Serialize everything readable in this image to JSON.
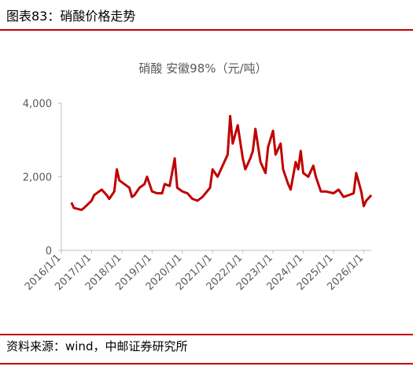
{
  "header": {
    "title": "图表83：硝酸价格走势"
  },
  "footer": {
    "source": "资料来源：wind，中邮证券研究所"
  },
  "chart_data": {
    "type": "line",
    "title": "硝酸 安徽98%（元/吨）",
    "x": [
      "2016/5/1",
      "2016/6/1",
      "2016/9/1",
      "2016/10/1",
      "2017/1/1",
      "2017/2/1",
      "2017/4/1",
      "2017/5/1",
      "2017/7/1",
      "2017/8/1",
      "2017/10/1",
      "2017/11/1",
      "2017/12/1",
      "2018/2/1",
      "2018/4/1",
      "2018/5/1",
      "2018/6/1",
      "2018/8/1",
      "2018/10/1",
      "2018/11/1",
      "2019/1/1",
      "2019/3/1",
      "2019/5/1",
      "2019/6/1",
      "2019/8/1",
      "2019/10/1",
      "2019/11/1",
      "2020/1/1",
      "2020/3/1",
      "2020/5/1",
      "2020/7/1",
      "2020/9/1",
      "2020/12/1",
      "2021/1/1",
      "2021/3/1",
      "2021/5/1",
      "2021/7/1",
      "2021/8/1",
      "2021/9/1",
      "2021/11/1",
      "2022/1/1",
      "2022/2/1",
      "2022/4/1",
      "2022/5/1",
      "2022/6/1",
      "2022/8/1",
      "2022/10/1",
      "2022/11/1",
      "2023/1/1",
      "2023/2/1",
      "2023/4/1",
      "2023/5/1",
      "2023/7/1",
      "2023/8/1",
      "2023/10/1",
      "2023/11/1",
      "2023/12/1",
      "2024/1/1",
      "2024/3/1",
      "2024/5/1",
      "2024/6/1",
      "2024/8/1",
      "2024/10/1",
      "2025/1/1",
      "2025/3/1",
      "2025/5/1",
      "2025/7/1",
      "2025/9/1",
      "2025/10/1",
      "2025/12/1",
      "2026/1/1",
      "2026/2/1",
      "2026/4/1"
    ],
    "series": [
      {
        "name": "硝酸 安徽98%",
        "color": "#c00000",
        "values": [
          1300,
          1150,
          1100,
          1150,
          1350,
          1500,
          1600,
          1650,
          1500,
          1400,
          1600,
          2200,
          1900,
          1800,
          1700,
          1450,
          1500,
          1700,
          1800,
          2000,
          1600,
          1550,
          1550,
          1800,
          1750,
          2500,
          1700,
          1600,
          1550,
          1400,
          1350,
          1450,
          1700,
          2200,
          2000,
          2300,
          2600,
          3650,
          2900,
          3400,
          2500,
          2200,
          2500,
          2700,
          3300,
          2400,
          2100,
          2800,
          3250,
          2600,
          2900,
          2200,
          1800,
          1650,
          2400,
          2200,
          2700,
          2100,
          2000,
          2300,
          2000,
          1600,
          1600,
          1550,
          1650,
          1450,
          1500,
          1550,
          2100,
          1600,
          1200,
          1350,
          1500
        ]
      }
    ],
    "xlim": [
      "2016/1/1",
      "2026/4/1"
    ],
    "xticks": [
      "2016/1/1",
      "2017/1/1",
      "2018/1/1",
      "2019/1/1",
      "2020/1/1",
      "2021/1/1",
      "2022/1/1",
      "2023/1/1",
      "2024/1/1",
      "2025/1/1",
      "2026/1/1"
    ],
    "ylim": [
      0,
      4000
    ],
    "yticks": [
      0,
      {
        "value": 2000,
        "label": "2,000"
      },
      {
        "value": 4000,
        "label": "4,000"
      }
    ]
  }
}
